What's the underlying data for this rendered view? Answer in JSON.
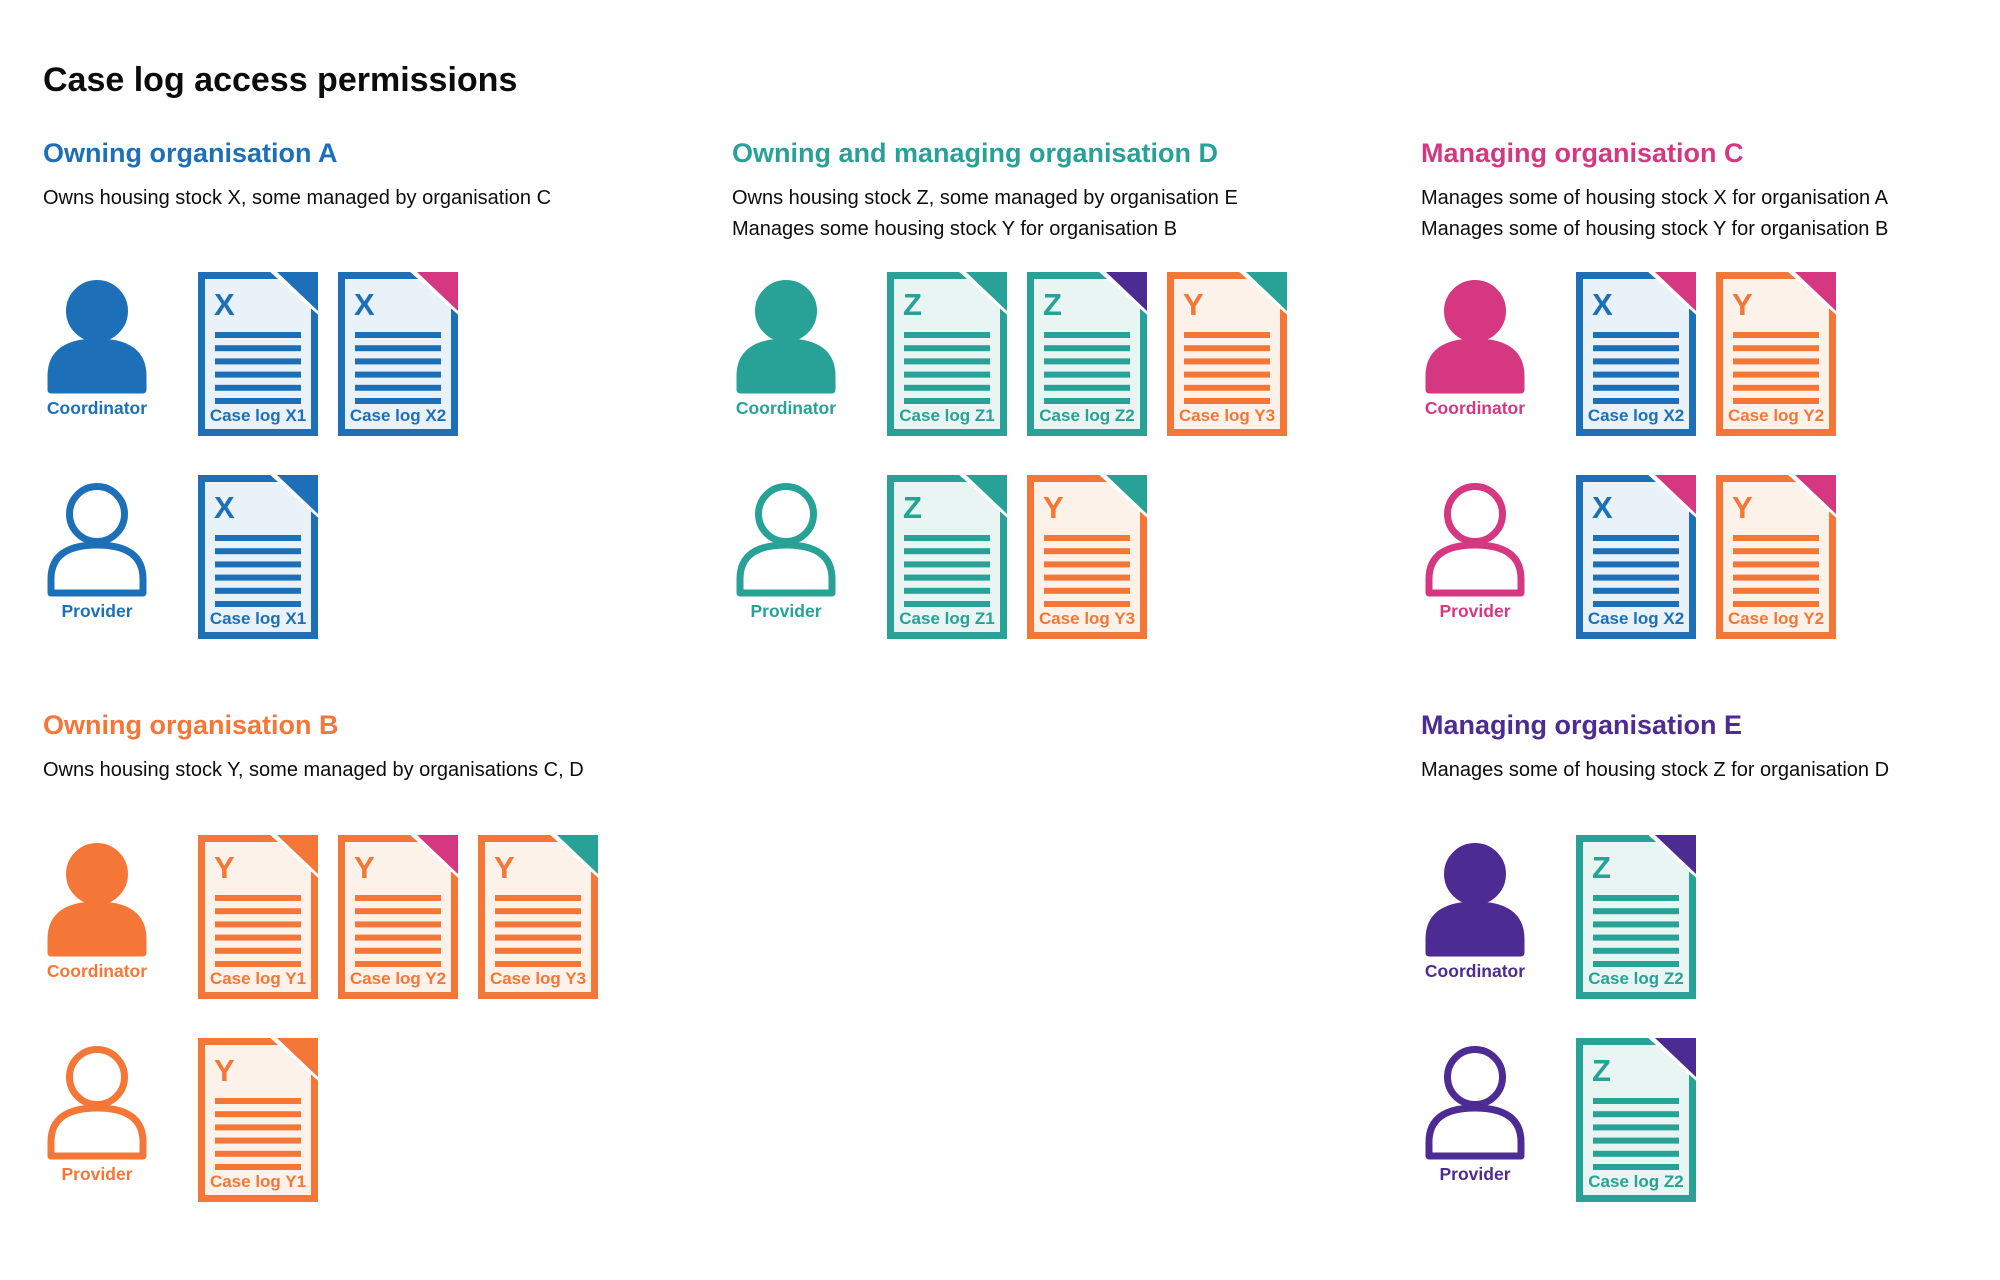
{
  "page": {
    "title": "Case log access permissions"
  },
  "labels": {
    "coordinator": "Coordinator",
    "provider": "Provider"
  },
  "colors": {
    "blue": "#1d70b8",
    "blue_light": "#e9f1f9",
    "teal": "#28a197",
    "teal_light": "#e9f5f2",
    "pink": "#d53880",
    "orange": "#f47738",
    "orange_light": "#fdf2e9",
    "purple": "#4c2c92",
    "text": "#0b0c0c"
  },
  "sections": [
    {
      "id": "a",
      "title": "Owning organisation A",
      "color_key": "blue",
      "description": [
        "Owns housing stock X, some managed by organisation C"
      ],
      "rows": [
        {
          "role": "coordinator",
          "docs": [
            {
              "label": "Case log X1",
              "letter": "X",
              "doc_color": "blue",
              "fold_color": "blue"
            },
            {
              "label": "Case log X2",
              "letter": "X",
              "doc_color": "blue",
              "fold_color": "pink"
            }
          ]
        },
        {
          "role": "provider",
          "docs": [
            {
              "label": "Case log X1",
              "letter": "X",
              "doc_color": "blue",
              "fold_color": "blue"
            }
          ]
        }
      ]
    },
    {
      "id": "d",
      "title": "Owning and managing organisation D",
      "color_key": "teal",
      "description": [
        "Owns housing stock Z, some managed by organisation E",
        "Manages some housing stock Y for organisation B"
      ],
      "rows": [
        {
          "role": "coordinator",
          "docs": [
            {
              "label": "Case log Z1",
              "letter": "Z",
              "doc_color": "teal",
              "fold_color": "teal"
            },
            {
              "label": "Case log Z2",
              "letter": "Z",
              "doc_color": "teal",
              "fold_color": "purple"
            },
            {
              "label": "Case log Y3",
              "letter": "Y",
              "doc_color": "orange",
              "fold_color": "teal"
            }
          ]
        },
        {
          "role": "provider",
          "docs": [
            {
              "label": "Case log Z1",
              "letter": "Z",
              "doc_color": "teal",
              "fold_color": "teal"
            },
            {
              "label": "Case log Y3",
              "letter": "Y",
              "doc_color": "orange",
              "fold_color": "teal"
            }
          ]
        }
      ]
    },
    {
      "id": "c",
      "title": "Managing organisation C",
      "color_key": "pink",
      "description": [
        "Manages some of housing stock X for organisation A",
        "Manages some of housing stock Y for organisation B"
      ],
      "rows": [
        {
          "role": "coordinator",
          "docs": [
            {
              "label": "Case log X2",
              "letter": "X",
              "doc_color": "blue",
              "fold_color": "pink"
            },
            {
              "label": "Case log Y2",
              "letter": "Y",
              "doc_color": "orange",
              "fold_color": "pink"
            }
          ]
        },
        {
          "role": "provider",
          "docs": [
            {
              "label": "Case log X2",
              "letter": "X",
              "doc_color": "blue",
              "fold_color": "pink"
            },
            {
              "label": "Case log Y2",
              "letter": "Y",
              "doc_color": "orange",
              "fold_color": "pink"
            }
          ]
        }
      ]
    },
    {
      "id": "b",
      "title": "Owning organisation B",
      "color_key": "orange",
      "description": [
        "Owns housing stock Y, some managed by organisations C, D"
      ],
      "rows": [
        {
          "role": "coordinator",
          "docs": [
            {
              "label": "Case log Y1",
              "letter": "Y",
              "doc_color": "orange",
              "fold_color": "orange"
            },
            {
              "label": "Case log Y2",
              "letter": "Y",
              "doc_color": "orange",
              "fold_color": "pink"
            },
            {
              "label": "Case log Y3",
              "letter": "Y",
              "doc_color": "orange",
              "fold_color": "teal"
            }
          ]
        },
        {
          "role": "provider",
          "docs": [
            {
              "label": "Case log Y1",
              "letter": "Y",
              "doc_color": "orange",
              "fold_color": "orange"
            }
          ]
        }
      ]
    },
    {
      "id": "e",
      "title": "Managing organisation E",
      "color_key": "purple",
      "description": [
        "Manages some of housing stock Z for organisation D"
      ],
      "rows": [
        {
          "role": "coordinator",
          "docs": [
            {
              "label": "Case log Z2",
              "letter": "Z",
              "doc_color": "teal",
              "fold_color": "purple"
            }
          ]
        },
        {
          "role": "provider",
          "docs": [
            {
              "label": "Case log Z2",
              "letter": "Z",
              "doc_color": "teal",
              "fold_color": "purple"
            }
          ]
        }
      ]
    }
  ]
}
